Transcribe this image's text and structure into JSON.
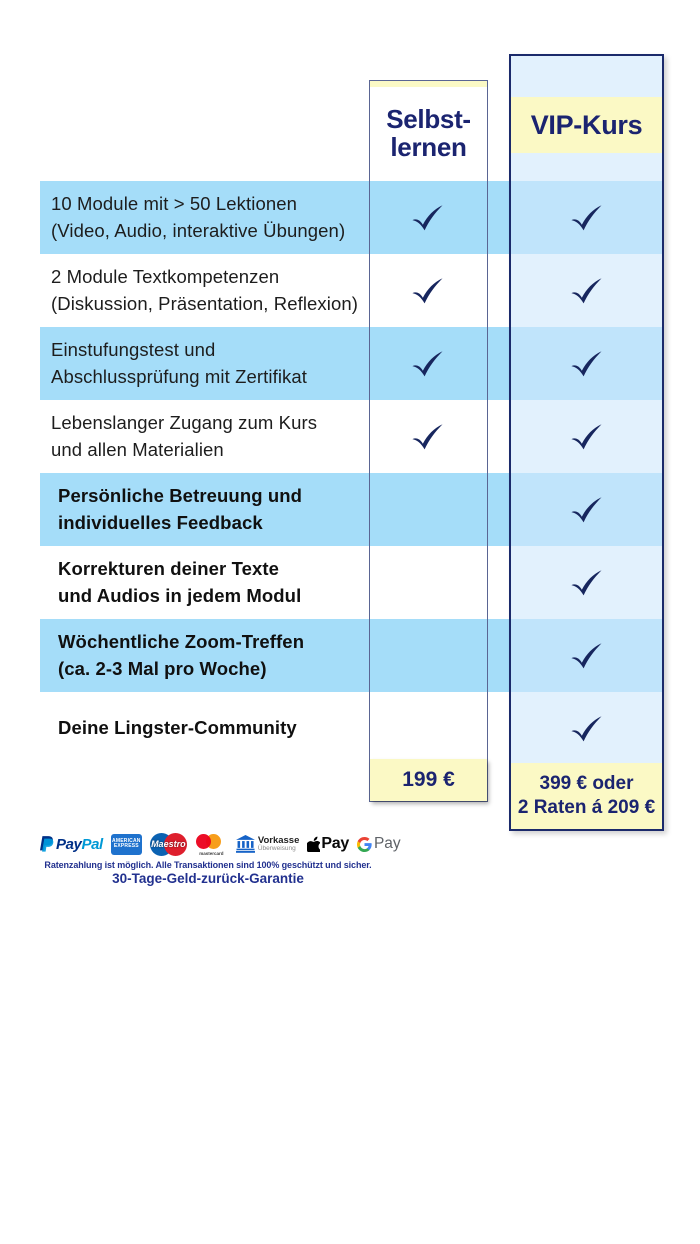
{
  "table": {
    "col_selbst": {
      "title_lines": [
        "Selbst-",
        "lernen"
      ],
      "price": "199 €"
    },
    "col_vip": {
      "title": "VIP-Kurs",
      "price_lines": [
        "399 € oder",
        "2 Raten á 209 €"
      ]
    },
    "features": [
      {
        "lines": [
          "10 Module mit > 50 Lektionen",
          "(Video, Audio, interaktive Übungen)"
        ],
        "bold": false,
        "selbst": true,
        "vip": true
      },
      {
        "lines": [
          "2 Module Textkompetenzen",
          "(Diskussion, Präsentation, Reflexion)"
        ],
        "bold": false,
        "selbst": true,
        "vip": true
      },
      {
        "lines": [
          "Einstufungstest und",
          "Abschlussprüfung mit Zertifikat"
        ],
        "bold": false,
        "selbst": true,
        "vip": true
      },
      {
        "lines": [
          "Lebenslanger Zugang zum Kurs",
          "und allen Materialien"
        ],
        "bold": false,
        "selbst": true,
        "vip": true
      },
      {
        "lines": [
          "Persönliche Betreuung und",
          "individuelles Feedback"
        ],
        "bold": true,
        "selbst": false,
        "vip": true
      },
      {
        "lines": [
          "Korrekturen deiner Texte",
          "und Audios in jedem Modul"
        ],
        "bold": true,
        "selbst": false,
        "vip": true
      },
      {
        "lines": [
          "Wöchentliche Zoom-Treffen",
          "(ca. 2-3 Mal pro Woche)"
        ],
        "bold": true,
        "selbst": false,
        "vip": true
      },
      {
        "lines": [
          "Deine Lingster-Community"
        ],
        "bold": true,
        "selbst": false,
        "vip": true
      }
    ]
  },
  "footer": {
    "payment_methods": [
      "PayPal",
      "American Express",
      "Maestro",
      "Mastercard",
      "Vorkasse Überweisung",
      "Apple Pay",
      "Google Pay"
    ],
    "paypal": {
      "word_part1": "Pay",
      "word_part2": "Pal"
    },
    "amex": {
      "line1": "AMERICAN",
      "line2": "EXPRESS"
    },
    "maestro": {
      "brand": "Maestro"
    },
    "mastercard": {
      "brand": "mastercard"
    },
    "vorkasse": {
      "label": "Vorkasse",
      "sublabel": "Überweisung"
    },
    "apple_pay": {
      "label": "Pay"
    },
    "google_pay": {
      "label": "Pay"
    },
    "note": "Ratenzahlung ist möglich. Alle Transaktionen sind 100% geschützt und sicher.",
    "guarantee": "30-Tage-Geld-zurück-Garantie"
  },
  "colors": {
    "row_blue": "#a5ddf9",
    "vip_overlay": "rgba(208,232,251,0.62)",
    "accent_yellow": "#fbf9c5",
    "navy_text": "#1b2470",
    "check_navy": "#17265e",
    "border_navy": "#1b2a6b",
    "note_blue": "#22318f"
  }
}
